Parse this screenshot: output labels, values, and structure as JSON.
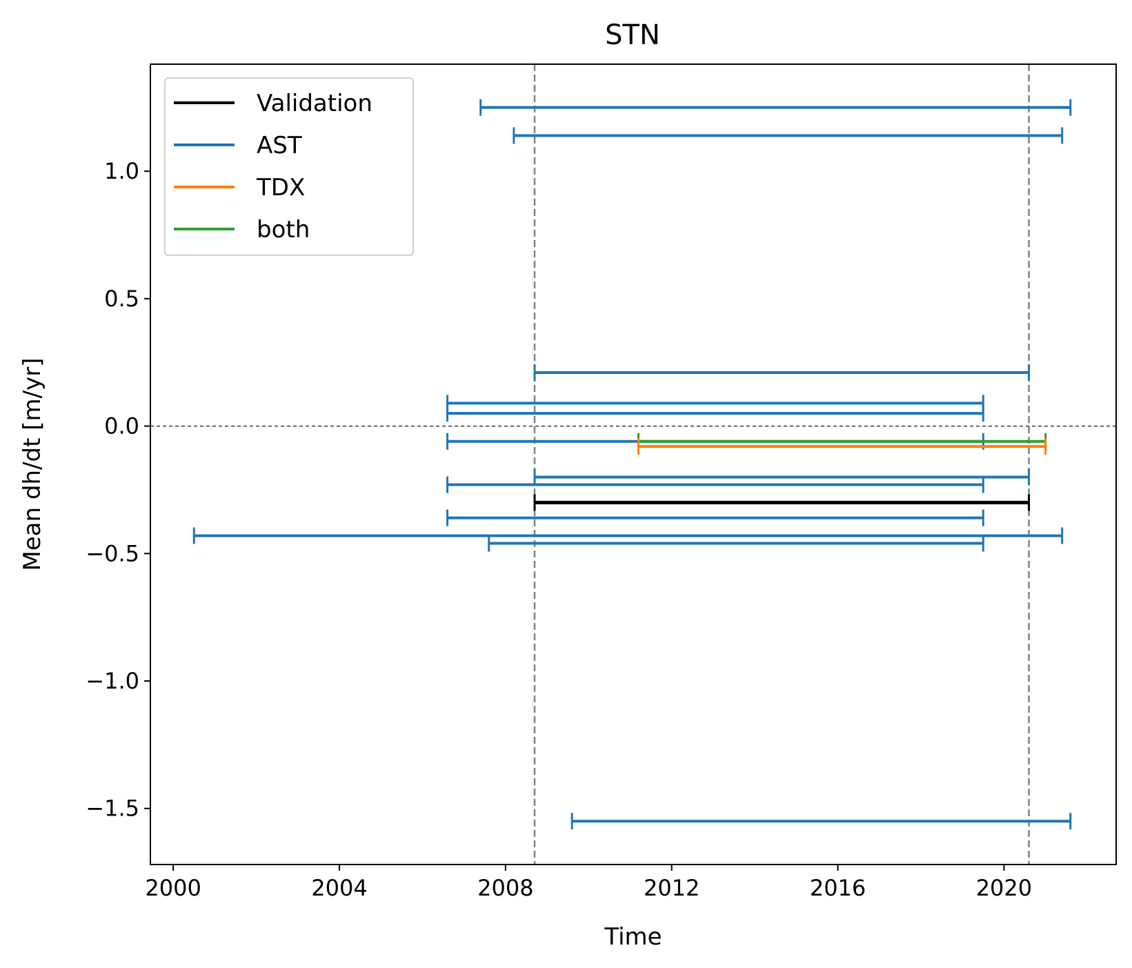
{
  "chart_data": {
    "type": "errorbar-intervals",
    "title": "STN",
    "xlabel": "Time",
    "ylabel": "Mean dh/dt [m/yr]",
    "xlim": [
      1999.45,
      2022.7
    ],
    "ylim": [
      -1.72,
      1.42
    ],
    "xticks": [
      2000,
      2004,
      2008,
      2012,
      2016,
      2020
    ],
    "yticks": [
      1.0,
      0.5,
      0.0,
      -0.5,
      -1.0,
      -1.5
    ],
    "ytick_labels": [
      "1.0",
      "0.5",
      "0.0",
      "−0.5",
      "−1.0",
      "−1.5"
    ],
    "grid": false,
    "legend_position": "top-left",
    "legend": [
      {
        "label": "Validation",
        "color": "#000000"
      },
      {
        "label": "AST",
        "color": "#1f77b4"
      },
      {
        "label": "TDX",
        "color": "#ff7f0e"
      },
      {
        "label": "both",
        "color": "#2ca02c"
      }
    ],
    "reference_lines": {
      "horizontal_y": 0.0,
      "vertical_x": [
        2008.7,
        2020.6
      ]
    },
    "series": [
      {
        "name": "AST",
        "color": "#1f77b4",
        "intervals": [
          {
            "start": 2007.4,
            "end": 2021.6,
            "value": 1.25
          },
          {
            "start": 2008.2,
            "end": 2021.4,
            "value": 1.14
          },
          {
            "start": 2008.7,
            "end": 2020.6,
            "value": 0.21
          },
          {
            "start": 2006.6,
            "end": 2019.5,
            "value": 0.09
          },
          {
            "start": 2006.6,
            "end": 2019.5,
            "value": 0.05
          },
          {
            "start": 2006.6,
            "end": 2019.5,
            "value": -0.06
          },
          {
            "start": 2008.7,
            "end": 2020.6,
            "value": -0.2
          },
          {
            "start": 2006.6,
            "end": 2019.5,
            "value": -0.23
          },
          {
            "start": 2006.6,
            "end": 2019.5,
            "value": -0.36
          },
          {
            "start": 2000.5,
            "end": 2021.4,
            "value": -0.43
          },
          {
            "start": 2007.6,
            "end": 2019.5,
            "value": -0.46
          },
          {
            "start": 2009.6,
            "end": 2021.6,
            "value": -1.55
          }
        ]
      },
      {
        "name": "both",
        "color": "#2ca02c",
        "intervals": [
          {
            "start": 2011.2,
            "end": 2021.0,
            "value": -0.06
          }
        ]
      },
      {
        "name": "TDX",
        "color": "#ff7f0e",
        "intervals": [
          {
            "start": 2011.2,
            "end": 2021.0,
            "value": -0.08
          }
        ]
      },
      {
        "name": "Validation",
        "color": "#000000",
        "intervals": [
          {
            "start": 2008.7,
            "end": 2020.6,
            "value": -0.3
          }
        ]
      }
    ]
  }
}
